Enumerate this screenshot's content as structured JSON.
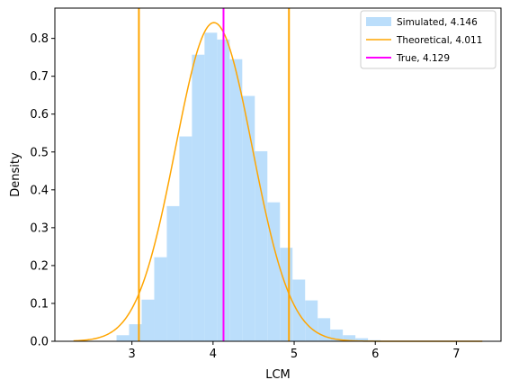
{
  "chart_data": {
    "type": "histogram",
    "xlabel": "LCM",
    "ylabel": "Density",
    "xlim": [
      2.05,
      7.55
    ],
    "ylim": [
      0,
      0.88
    ],
    "xticks": [
      3,
      4,
      5,
      6,
      7
    ],
    "yticks": [
      0.0,
      0.1,
      0.2,
      0.3,
      0.4,
      0.5,
      0.6,
      0.7,
      0.8
    ],
    "ytick_labels": [
      "0.0",
      "0.1",
      "0.2",
      "0.3",
      "0.4",
      "0.5",
      "0.6",
      "0.7",
      "0.8"
    ],
    "grid": false,
    "legend_position": "top-right",
    "histogram": {
      "name": "Simulated, 4.146",
      "color": "#bbdefb",
      "bins": [
        {
          "x0": 2.81,
          "x1": 2.965,
          "value": 0.016
        },
        {
          "x0": 2.965,
          "x1": 3.12,
          "value": 0.045
        },
        {
          "x0": 3.12,
          "x1": 3.275,
          "value": 0.11
        },
        {
          "x0": 3.275,
          "x1": 3.43,
          "value": 0.222
        },
        {
          "x0": 3.43,
          "x1": 3.585,
          "value": 0.357
        },
        {
          "x0": 3.585,
          "x1": 3.74,
          "value": 0.541
        },
        {
          "x0": 3.74,
          "x1": 3.895,
          "value": 0.757
        },
        {
          "x0": 3.895,
          "x1": 4.05,
          "value": 0.815
        },
        {
          "x0": 4.05,
          "x1": 4.205,
          "value": 0.797
        },
        {
          "x0": 4.205,
          "x1": 4.36,
          "value": 0.745
        },
        {
          "x0": 4.36,
          "x1": 4.515,
          "value": 0.648
        },
        {
          "x0": 4.515,
          "x1": 4.67,
          "value": 0.502
        },
        {
          "x0": 4.67,
          "x1": 4.825,
          "value": 0.367
        },
        {
          "x0": 4.825,
          "x1": 4.98,
          "value": 0.247
        },
        {
          "x0": 4.98,
          "x1": 5.135,
          "value": 0.163
        },
        {
          "x0": 5.135,
          "x1": 5.29,
          "value": 0.108
        },
        {
          "x0": 5.29,
          "x1": 5.445,
          "value": 0.061
        },
        {
          "x0": 5.445,
          "x1": 5.6,
          "value": 0.031
        },
        {
          "x0": 5.6,
          "x1": 5.755,
          "value": 0.016
        },
        {
          "x0": 5.755,
          "x1": 5.91,
          "value": 0.008
        },
        {
          "x0": 5.91,
          "x1": 6.065,
          "value": 0.003
        },
        {
          "x0": 6.065,
          "x1": 6.22,
          "value": 0.001
        }
      ]
    },
    "curve": {
      "name": "Theoretical, 4.011",
      "color": "#ffa500",
      "mean": 4.011,
      "sd": 0.474,
      "x_start": 2.28,
      "x_end": 7.32
    },
    "vertical_lines": [
      {
        "x": 3.086,
        "color": "#ffa500",
        "label": ""
      },
      {
        "x": 4.936,
        "color": "#ffa500",
        "label": ""
      },
      {
        "x": 4.129,
        "color": "#ff00ff",
        "label": "True, 4.129"
      }
    ]
  }
}
